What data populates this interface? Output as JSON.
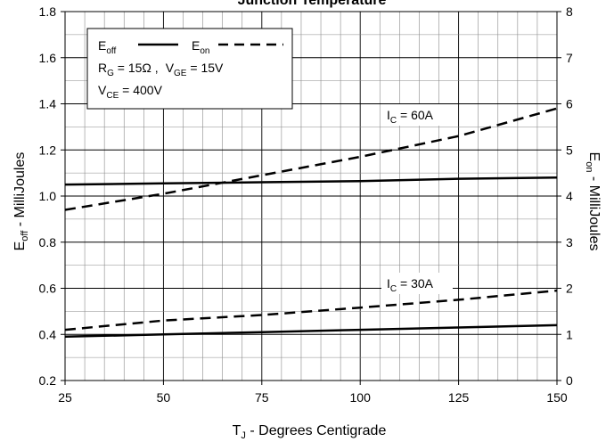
{
  "chart_data": {
    "type": "line",
    "title": "Junction Temperature",
    "xlabel": {
      "main": "T",
      "sub": "J",
      "rest": " - Degrees Centigrade"
    },
    "ylabel_left": {
      "main": "E",
      "sub": "off",
      "rest": " - MilliJoules"
    },
    "ylabel_right": {
      "main": "E",
      "sub": "on",
      "rest": " - MilliJoules"
    },
    "xlim": [
      25,
      150
    ],
    "ylim_left": [
      0.2,
      1.8
    ],
    "ylim_right": [
      0,
      8
    ],
    "x_ticks": [
      "25",
      "50",
      "75",
      "100",
      "125",
      "150"
    ],
    "y_left_ticks": [
      "0.2",
      "0.4",
      "0.6",
      "0.8",
      "1.0",
      "1.2",
      "1.4",
      "1.6",
      "1.8"
    ],
    "y_right_ticks": [
      "0",
      "1",
      "2",
      "3",
      "4",
      "5",
      "6",
      "7",
      "8"
    ],
    "grid": true,
    "legend": {
      "position": "top-left",
      "eoff": {
        "main": "E",
        "sub": "off"
      },
      "eon": {
        "main": "E",
        "sub": "on"
      },
      "rg": {
        "main": "R",
        "sub": "G",
        "rest": " = 15Ω ,"
      },
      "vge": {
        "main": "V",
        "sub": "GE",
        "rest": " = 15V"
      },
      "vce": {
        "main": "V",
        "sub": "CE",
        "rest": " = 400V"
      }
    },
    "annotations": [
      {
        "main": "I",
        "sub": "C",
        "rest": " = 60A"
      },
      {
        "main": "I",
        "sub": "C",
        "rest": " = 30A"
      }
    ],
    "series": [
      {
        "kind": "Eoff",
        "axis": "left",
        "style": "solid",
        "condition": "60A",
        "x": [
          25,
          50,
          75,
          100,
          125,
          150
        ],
        "values": [
          1.05,
          1.055,
          1.06,
          1.065,
          1.075,
          1.08
        ]
      },
      {
        "kind": "Eon",
        "axis": "right",
        "style": "dashed",
        "condition": "60A",
        "x": [
          25,
          50,
          75,
          100,
          125,
          150
        ],
        "values": [
          3.7,
          4.05,
          4.45,
          4.85,
          5.3,
          5.9
        ]
      },
      {
        "kind": "Eoff",
        "axis": "left",
        "style": "solid",
        "condition": "30A",
        "x": [
          25,
          50,
          75,
          100,
          125,
          150
        ],
        "values": [
          0.39,
          0.4,
          0.41,
          0.42,
          0.43,
          0.44
        ]
      },
      {
        "kind": "Eon",
        "axis": "right",
        "style": "dashed",
        "condition": "30A",
        "x": [
          25,
          50,
          75,
          100,
          125,
          150
        ],
        "values": [
          1.1,
          1.3,
          1.42,
          1.58,
          1.75,
          1.95
        ]
      }
    ]
  }
}
